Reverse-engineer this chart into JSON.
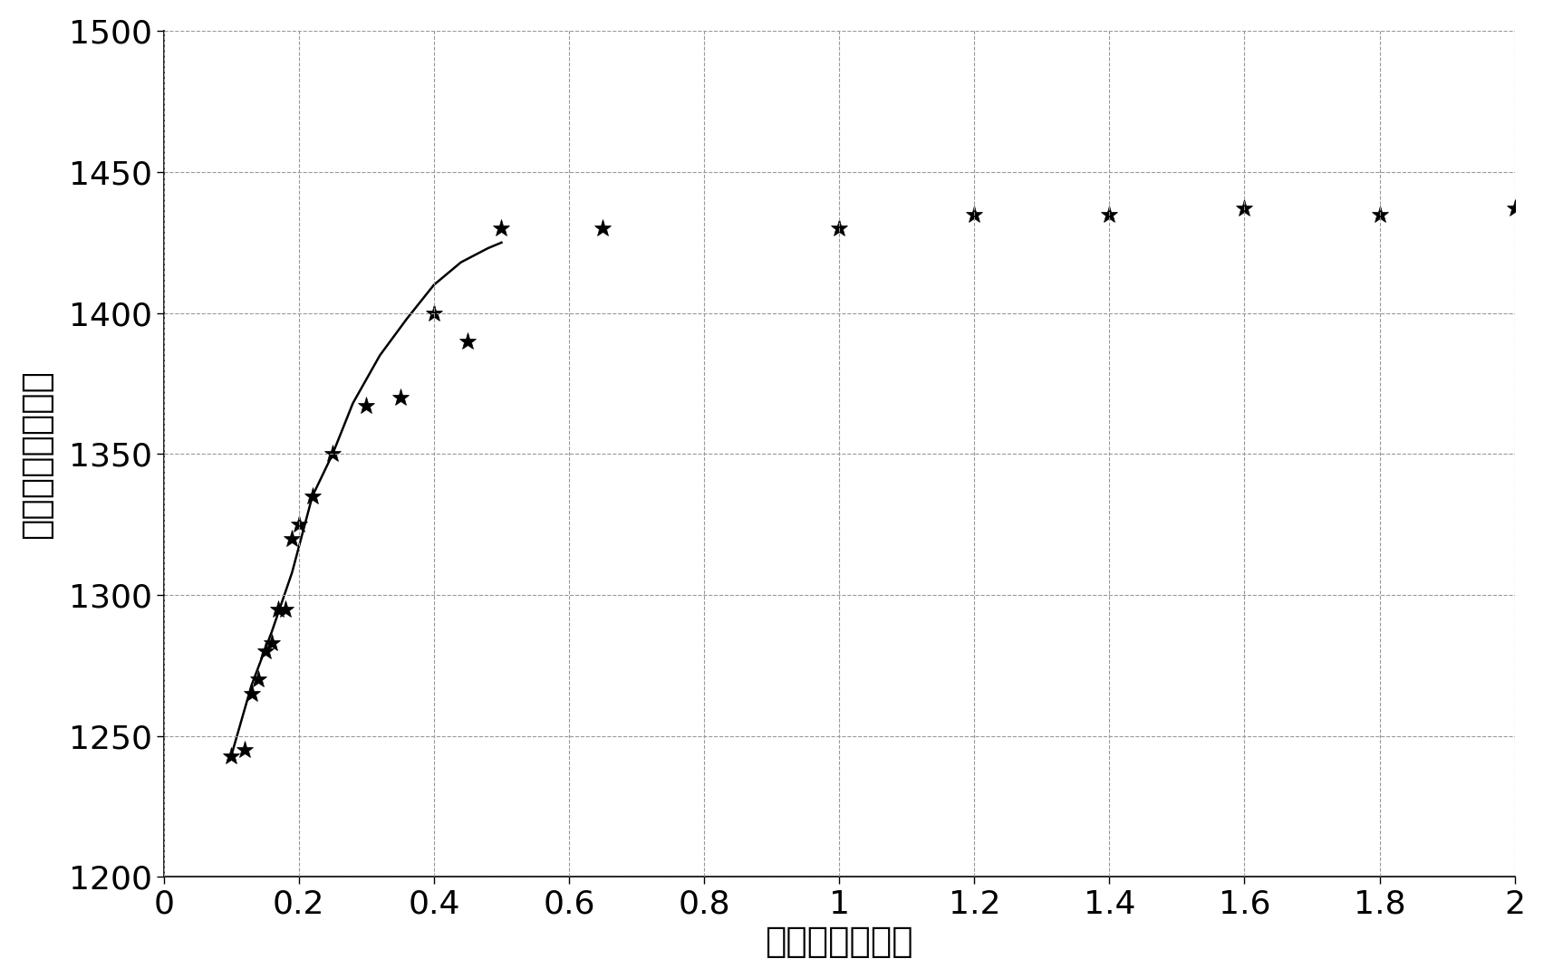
{
  "scatter_x": [
    0.1,
    0.12,
    0.13,
    0.14,
    0.15,
    0.16,
    0.17,
    0.18,
    0.19,
    0.2,
    0.22,
    0.25,
    0.3,
    0.35,
    0.4,
    0.45,
    0.5,
    0.65,
    1.0,
    1.2,
    1.4,
    1.6,
    1.8,
    2.0
  ],
  "scatter_y": [
    1243,
    1245,
    1265,
    1270,
    1280,
    1283,
    1295,
    1295,
    1320,
    1325,
    1335,
    1350,
    1367,
    1370,
    1400,
    1390,
    1430,
    1430,
    1430,
    1435,
    1435,
    1437,
    1435,
    1437
  ],
  "curve_x": [
    0.1,
    0.13,
    0.16,
    0.19,
    0.22,
    0.25,
    0.28,
    0.32,
    0.36,
    0.4,
    0.44,
    0.48,
    0.5
  ],
  "curve_y": [
    1243,
    1268,
    1287,
    1308,
    1335,
    1350,
    1368,
    1385,
    1398,
    1410,
    1418,
    1423,
    1425
  ],
  "xlim": [
    0,
    2.0
  ],
  "ylim": [
    1200,
    1500
  ],
  "xticks": [
    0,
    0.2,
    0.4,
    0.6,
    0.8,
    1.0,
    1.2,
    1.4,
    1.6,
    1.8,
    2.0
  ],
  "yticks": [
    1200,
    1250,
    1300,
    1350,
    1400,
    1450,
    1500
  ],
  "xlabel": "归一化抓取速度",
  "ylabel": "伸肌最大分形长度",
  "background_color": "#ffffff",
  "line_color": "#000000",
  "marker_color": "#000000",
  "grid_color": "#999999",
  "xlabel_fontsize": 28,
  "ylabel_fontsize": 28,
  "tick_fontsize": 26
}
